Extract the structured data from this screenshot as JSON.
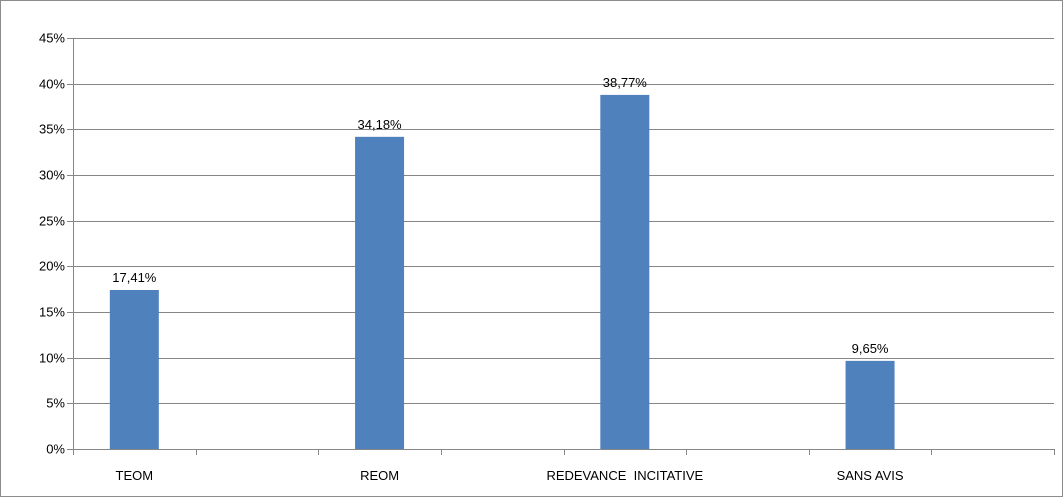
{
  "chart_data": {
    "type": "bar",
    "categories": [
      "TEOM",
      "REOM",
      "REDEVANCE  INCITATIVE",
      "SANS AVIS"
    ],
    "values": [
      17.41,
      34.18,
      38.77,
      9.65
    ],
    "data_labels": [
      "17,41%",
      "34,18%",
      "38,77%",
      "9,65%"
    ],
    "y_ticks": [
      0,
      5,
      10,
      15,
      20,
      25,
      30,
      35,
      40,
      45
    ],
    "y_tick_labels": [
      "0%",
      "5%",
      "10%",
      "15%",
      "20%",
      "25%",
      "30%",
      "35%",
      "40%",
      "45%"
    ],
    "ylim": [
      0,
      45
    ],
    "grid": true,
    "legend": "none",
    "bar_color": "#4f81bd",
    "grid_color": "#868686",
    "title": "",
    "xlabel": "",
    "ylabel": ""
  }
}
